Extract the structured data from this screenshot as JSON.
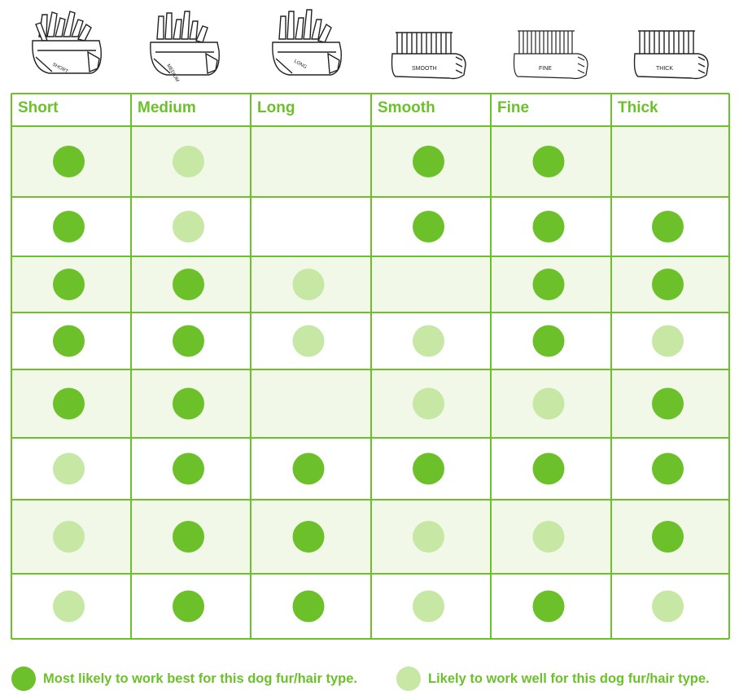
{
  "colors": {
    "best": "#6cc12b",
    "good": "#c6e8a4",
    "grid": "#6cc12b",
    "shade": "#f1f8e8",
    "header_text": "#6cc12b"
  },
  "brush_icons": [
    {
      "name": "short-brush-icon",
      "label": "SHORT"
    },
    {
      "name": "medium-brush-icon",
      "label": "MEDIUM"
    },
    {
      "name": "long-brush-icon",
      "label": "LONG"
    },
    {
      "name": "smooth-brush-icon",
      "label": "SMOOTH"
    },
    {
      "name": "fine-brush-icon",
      "label": "FINE"
    },
    {
      "name": "thick-brush-icon",
      "label": "THICK"
    }
  ],
  "chart_data": {
    "type": "table",
    "columns": [
      "Short",
      "Medium",
      "Long",
      "Smooth",
      "Fine",
      "Thick"
    ],
    "rows": [
      [
        "best",
        "good",
        "",
        "best",
        "best",
        ""
      ],
      [
        "best",
        "good",
        "",
        "best",
        "best",
        "best"
      ],
      [
        "best",
        "best",
        "good",
        "",
        "best",
        "best"
      ],
      [
        "best",
        "best",
        "good",
        "good",
        "best",
        "good"
      ],
      [
        "best",
        "best",
        "",
        "good",
        "good",
        "best"
      ],
      [
        "good",
        "best",
        "best",
        "best",
        "best",
        "best"
      ],
      [
        "good",
        "best",
        "best",
        "good",
        "good",
        "best"
      ],
      [
        "good",
        "best",
        "best",
        "good",
        "best",
        "good"
      ]
    ],
    "legend": [
      {
        "key": "best",
        "label": "Most likely to work best for this dog fur/hair type."
      },
      {
        "key": "good",
        "label": "Likely to work well for this dog fur/hair type."
      }
    ]
  }
}
